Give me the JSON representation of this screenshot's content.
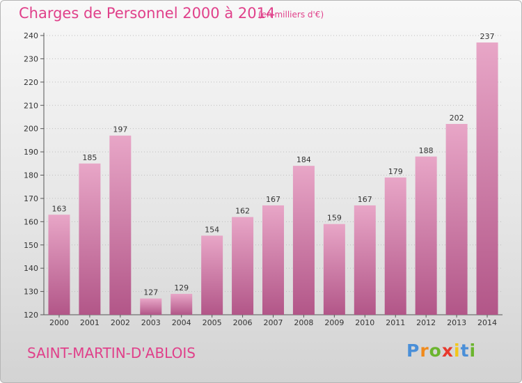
{
  "chart_data": {
    "type": "bar",
    "title": "Charges de Personnel 2000 à 2014",
    "subtitle": "(en milliers d'€)",
    "categories": [
      "2000",
      "2001",
      "2002",
      "2003",
      "2004",
      "2005",
      "2006",
      "2007",
      "2008",
      "2009",
      "2010",
      "2011",
      "2012",
      "2013",
      "2014"
    ],
    "values": [
      163,
      185,
      197,
      127,
      129,
      154,
      162,
      167,
      184,
      159,
      167,
      179,
      188,
      202,
      237
    ],
    "ylim": [
      120,
      240
    ],
    "yticks": [
      120,
      130,
      140,
      150,
      160,
      170,
      180,
      190,
      200,
      210,
      220,
      230,
      240
    ],
    "grid": "dotted-horizontal",
    "bar_color": "#d9679f",
    "bar_color_light": "#e8a6c7"
  },
  "place_name": "SAINT-MARTIN-D'ABLOIS",
  "logo": {
    "letters": [
      "P",
      "r",
      "o",
      "x",
      "i",
      "t",
      "i"
    ],
    "colors": [
      "#4a8fd8",
      "#f08a1c",
      "#6bb52e",
      "#e8392d",
      "#f2c618",
      "#4a8fd8",
      "#6bb52e"
    ]
  },
  "colors": {
    "title": "#e0408a",
    "axis": "#555555",
    "grid": "#bdbdbd"
  }
}
